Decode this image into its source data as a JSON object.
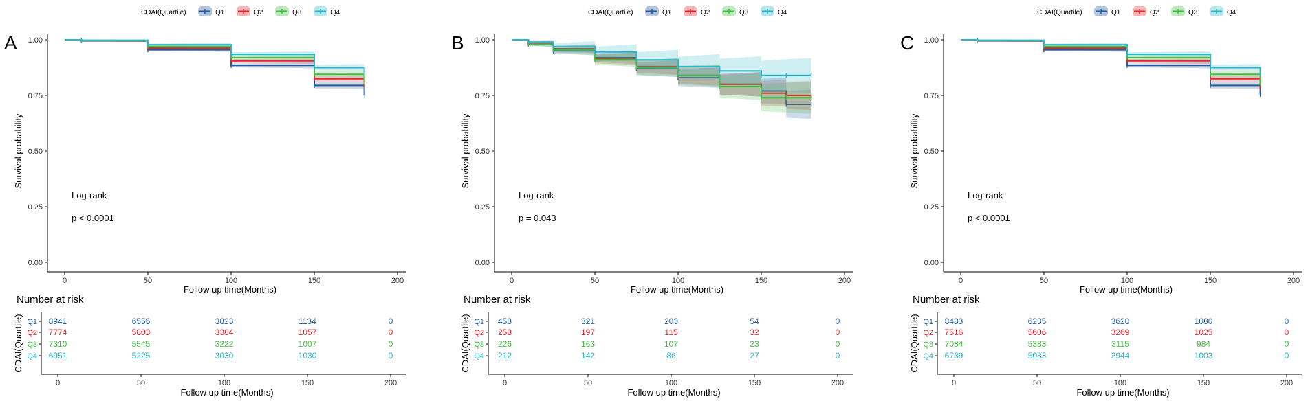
{
  "chart_data": [
    {
      "panel_label": "A",
      "type": "line",
      "subtype": "kaplan-meier",
      "legend_title": "CDAI(Quartile)",
      "legend_position": "top",
      "series_names": [
        "Q1",
        "Q2",
        "Q3",
        "Q4"
      ],
      "ylabel": "Survival probability",
      "xlabel": "Follow up time(Months)",
      "xlim": [
        0,
        200
      ],
      "ylim": [
        0,
        1
      ],
      "x_ticks": [
        "0",
        "50",
        "100",
        "150",
        "200"
      ],
      "y_ticks": [
        "0.00",
        "0.25",
        "0.50",
        "0.75",
        "1.00"
      ],
      "annotation_title": "Log-rank",
      "annotation_p": "p < 0.0001",
      "series": [
        {
          "name": "Q1",
          "x": [
            0,
            10,
            50,
            100,
            150,
            180
          ],
          "y": [
            1.0,
            0.995,
            0.955,
            0.885,
            0.795,
            0.75
          ],
          "band": 0.012
        },
        {
          "name": "Q2",
          "x": [
            0,
            10,
            50,
            100,
            150,
            180
          ],
          "y": [
            1.0,
            0.996,
            0.963,
            0.905,
            0.825,
            0.79
          ],
          "band": 0.012
        },
        {
          "name": "Q3",
          "x": [
            0,
            10,
            50,
            100,
            150,
            180
          ],
          "y": [
            1.0,
            0.997,
            0.97,
            0.92,
            0.845,
            0.805
          ],
          "band": 0.012
        },
        {
          "name": "Q4",
          "x": [
            0,
            10,
            50,
            100,
            150,
            180
          ],
          "y": [
            1.0,
            0.998,
            0.978,
            0.935,
            0.875,
            0.85
          ],
          "band": 0.012
        }
      ],
      "risk_table": {
        "title": "Number at risk",
        "ylabel": "CDAI(Quartile)",
        "xlabel": "Follow up time(Months)",
        "times": [
          0,
          50,
          100,
          150,
          200
        ],
        "time_labels": [
          "0",
          "50",
          "100",
          "150",
          "200"
        ],
        "rows": [
          {
            "name": "Q1",
            "values": [
              "8941",
              "6556",
              "3823",
              "1134",
              "0"
            ]
          },
          {
            "name": "Q2",
            "values": [
              "7774",
              "5803",
              "3384",
              "1057",
              "0"
            ]
          },
          {
            "name": "Q3",
            "values": [
              "7310",
              "5546",
              "3222",
              "1007",
              "0"
            ]
          },
          {
            "name": "Q4",
            "values": [
              "6951",
              "5225",
              "3030",
              "1030",
              "0"
            ]
          }
        ]
      }
    },
    {
      "panel_label": "B",
      "type": "line",
      "subtype": "kaplan-meier",
      "legend_title": "CDAI(Quartile)",
      "legend_position": "top",
      "series_names": [
        "Q1",
        "Q2",
        "Q3",
        "Q4"
      ],
      "ylabel": "Survival probability",
      "xlabel": "Follow up time(Months)",
      "xlim": [
        0,
        200
      ],
      "ylim": [
        0,
        1
      ],
      "x_ticks": [
        "0",
        "50",
        "100",
        "150",
        "200"
      ],
      "y_ticks": [
        "0.00",
        "0.25",
        "0.50",
        "0.75",
        "1.00"
      ],
      "annotation_title": "Log-rank",
      "annotation_p": "p = 0.043",
      "series": [
        {
          "name": "Q1",
          "x": [
            0,
            10,
            25,
            50,
            75,
            100,
            125,
            150,
            165,
            180
          ],
          "y": [
            1.0,
            0.98,
            0.95,
            0.92,
            0.87,
            0.83,
            0.8,
            0.77,
            0.71,
            0.71
          ],
          "band": 0.05
        },
        {
          "name": "Q2",
          "x": [
            0,
            10,
            25,
            50,
            75,
            100,
            125,
            150,
            165,
            180
          ],
          "y": [
            1.0,
            0.985,
            0.96,
            0.915,
            0.88,
            0.84,
            0.8,
            0.76,
            0.75,
            0.75
          ],
          "band": 0.05
        },
        {
          "name": "Q3",
          "x": [
            0,
            10,
            25,
            50,
            75,
            100,
            125,
            150,
            165,
            180
          ],
          "y": [
            1.0,
            0.98,
            0.955,
            0.91,
            0.875,
            0.84,
            0.79,
            0.74,
            0.74,
            0.74
          ],
          "band": 0.055
        },
        {
          "name": "Q4",
          "x": [
            0,
            10,
            25,
            50,
            75,
            100,
            125,
            150,
            165,
            180
          ],
          "y": [
            1.0,
            0.99,
            0.97,
            0.945,
            0.91,
            0.88,
            0.86,
            0.84,
            0.84,
            0.84
          ],
          "band": 0.06
        }
      ],
      "risk_table": {
        "title": "Number at risk",
        "ylabel": "CDAI(Quartile)",
        "xlabel": "Follow up time(Months)",
        "times": [
          0,
          50,
          100,
          150,
          200
        ],
        "time_labels": [
          "0",
          "50",
          "100",
          "150",
          "200"
        ],
        "rows": [
          {
            "name": "Q1",
            "values": [
              "458",
              "321",
              "203",
              "54",
              "0"
            ]
          },
          {
            "name": "Q2",
            "values": [
              "258",
              "197",
              "115",
              "32",
              "0"
            ]
          },
          {
            "name": "Q3",
            "values": [
              "226",
              "163",
              "107",
              "23",
              "0"
            ]
          },
          {
            "name": "Q4",
            "values": [
              "212",
              "142",
              "86",
              "27",
              "0"
            ]
          }
        ]
      }
    },
    {
      "panel_label": "C",
      "type": "line",
      "subtype": "kaplan-meier",
      "legend_title": "CDAI(Quartile)",
      "legend_position": "top",
      "series_names": [
        "Q1",
        "Q2",
        "Q3",
        "Q4"
      ],
      "ylabel": "Survival probability",
      "xlabel": "Follow up time(Months)",
      "xlim": [
        0,
        200
      ],
      "ylim": [
        0,
        1
      ],
      "x_ticks": [
        "0",
        "50",
        "100",
        "150",
        "200"
      ],
      "y_ticks": [
        "0.00",
        "0.25",
        "0.50",
        "0.75",
        "1.00"
      ],
      "annotation_title": "Log-rank",
      "annotation_p": "p < 0.0001",
      "series": [
        {
          "name": "Q1",
          "x": [
            0,
            10,
            50,
            100,
            150,
            180
          ],
          "y": [
            1.0,
            0.995,
            0.955,
            0.885,
            0.795,
            0.755
          ],
          "band": 0.012
        },
        {
          "name": "Q2",
          "x": [
            0,
            10,
            50,
            100,
            150,
            180
          ],
          "y": [
            1.0,
            0.996,
            0.963,
            0.905,
            0.825,
            0.79
          ],
          "band": 0.012
        },
        {
          "name": "Q3",
          "x": [
            0,
            10,
            50,
            100,
            150,
            180
          ],
          "y": [
            1.0,
            0.997,
            0.97,
            0.92,
            0.845,
            0.805
          ],
          "band": 0.012
        },
        {
          "name": "Q4",
          "x": [
            0,
            10,
            50,
            100,
            150,
            180
          ],
          "y": [
            1.0,
            0.998,
            0.978,
            0.935,
            0.875,
            0.85
          ],
          "band": 0.012
        }
      ],
      "risk_table": {
        "title": "Number at risk",
        "ylabel": "CDAI(Quartile)",
        "xlabel": "Follow up time(Months)",
        "times": [
          0,
          50,
          100,
          150,
          200
        ],
        "time_labels": [
          "0",
          "50",
          "100",
          "150",
          "200"
        ],
        "rows": [
          {
            "name": "Q1",
            "values": [
              "8483",
              "6235",
              "3620",
              "1080",
              "0"
            ]
          },
          {
            "name": "Q2",
            "values": [
              "7516",
              "5606",
              "3269",
              "1025",
              "0"
            ]
          },
          {
            "name": "Q3",
            "values": [
              "7084",
              "5383",
              "3115",
              "984",
              "0"
            ]
          },
          {
            "name": "Q4",
            "values": [
              "6739",
              "5083",
              "2944",
              "1003",
              "0"
            ]
          }
        ]
      }
    }
  ],
  "colors": {
    "Q1": "#1f5b9e",
    "Q2": "#e3242b",
    "Q3": "#3fbf3f",
    "Q4": "#2bb5c8"
  }
}
